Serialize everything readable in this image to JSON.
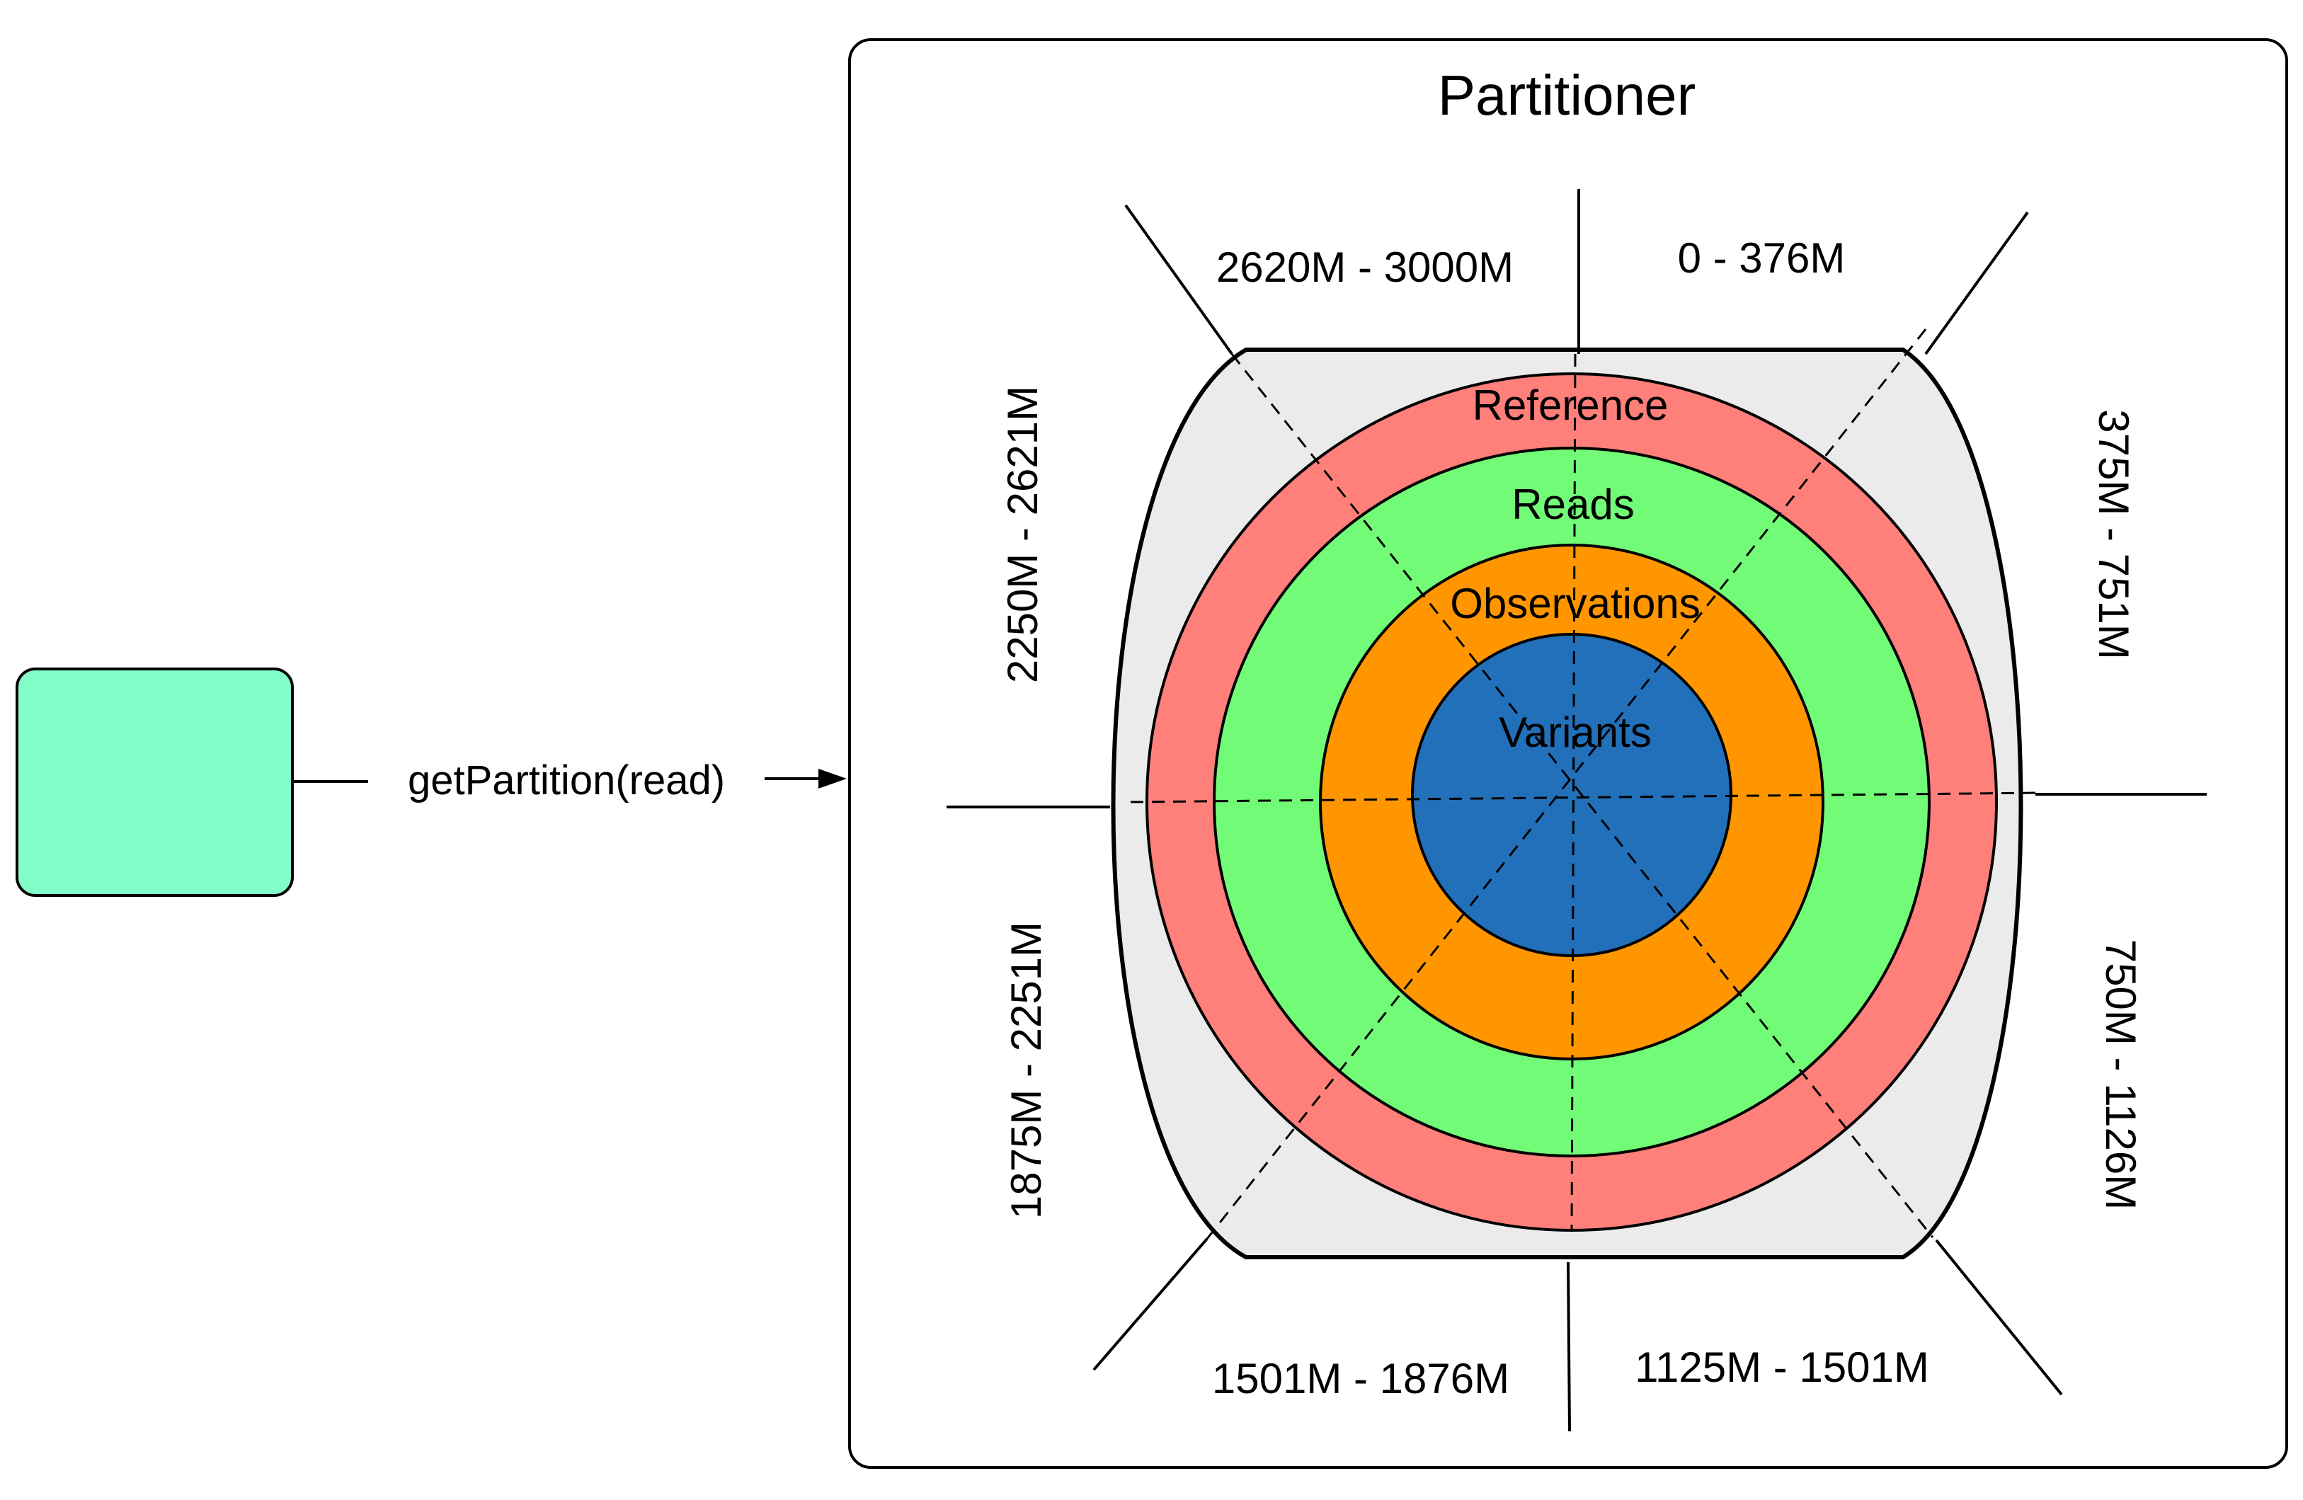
{
  "colors": {
    "source_box_fill": "#82FFC8",
    "container_stroke": "#000000",
    "cylinder_fill": "#EBEBEB",
    "reference_ring": "#FF7F7A",
    "reads_ring": "#72FB77",
    "observations_ring": "#FF9600",
    "variants_core": "#2270BA"
  },
  "source": {
    "label": ""
  },
  "edge": {
    "label": "getPartition(read)"
  },
  "partitioner": {
    "title": "Partitioner",
    "layers": [
      {
        "label": "Reference",
        "color": "#FF7F7A"
      },
      {
        "label": "Reads",
        "color": "#72FB77"
      },
      {
        "label": "Observations",
        "color": "#FF9600"
      },
      {
        "label": "Variants",
        "color": "#2270BA"
      }
    ],
    "ranges": {
      "top_left": "2620M - 3000M",
      "top_right": "0 - 376M",
      "right_upper": "375M - 751M",
      "right_lower": "750M - 1126M",
      "bottom_right": "1125M - 1501M",
      "bottom_left": "1501M - 1876M",
      "left_lower": "1875M - 2251M",
      "left_upper": "2250M - 2621M"
    }
  }
}
